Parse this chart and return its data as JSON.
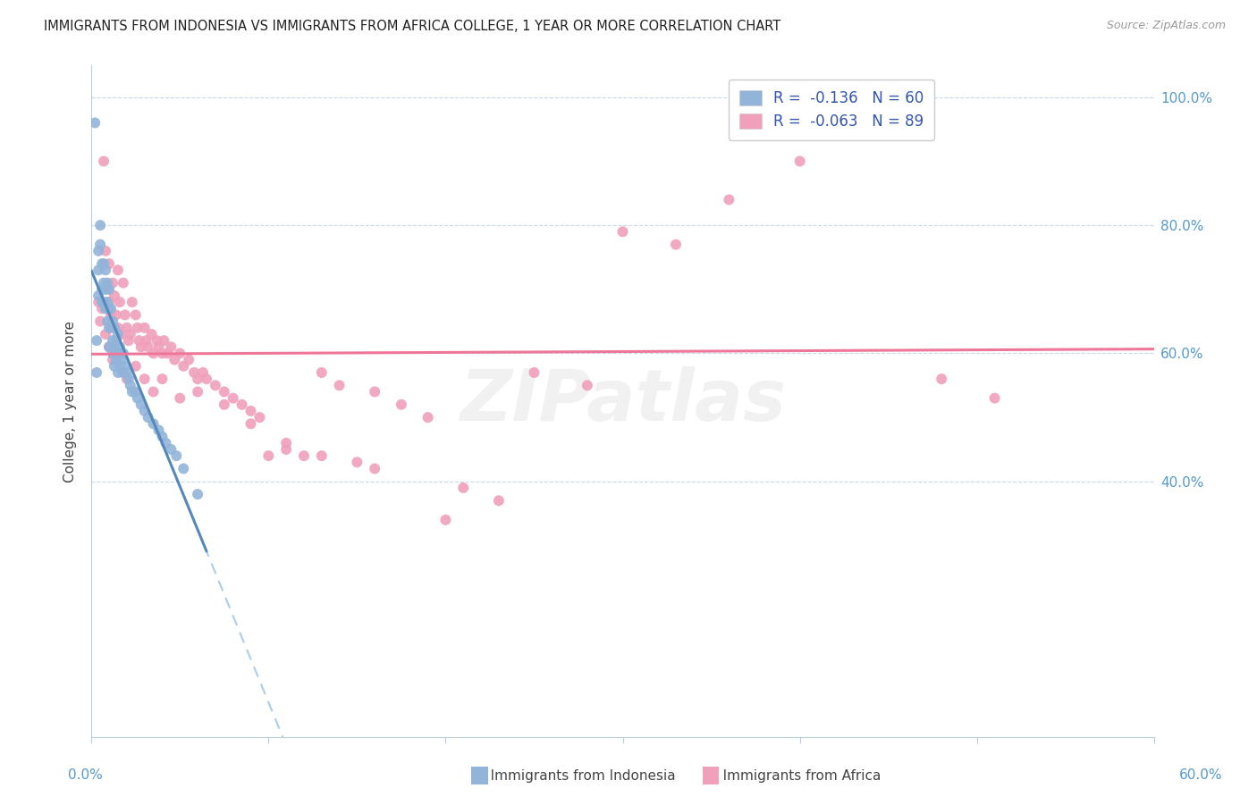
{
  "title": "IMMIGRANTS FROM INDONESIA VS IMMIGRANTS FROM AFRICA COLLEGE, 1 YEAR OR MORE CORRELATION CHART",
  "source": "Source: ZipAtlas.com",
  "ylabel": "College, 1 year or more",
  "r_indonesia": -0.136,
  "n_indonesia": 60,
  "r_africa": -0.063,
  "n_africa": 89,
  "color_indonesia": "#92B4D9",
  "color_africa": "#F0A0BB",
  "color_indonesia_line": "#5588BB",
  "color_africa_line": "#EE7799",
  "color_indonesia_dash": "#AACCEE",
  "legend_label_indonesia": "Immigrants from Indonesia",
  "legend_label_africa": "Immigrants from Africa",
  "xlim": [
    0.0,
    0.6
  ],
  "ylim": [
    0.0,
    1.05
  ],
  "indonesia_scatter_x": [
    0.002,
    0.003,
    0.003,
    0.004,
    0.004,
    0.004,
    0.005,
    0.005,
    0.006,
    0.006,
    0.006,
    0.007,
    0.007,
    0.007,
    0.008,
    0.008,
    0.008,
    0.009,
    0.009,
    0.009,
    0.01,
    0.01,
    0.01,
    0.01,
    0.011,
    0.011,
    0.012,
    0.012,
    0.012,
    0.013,
    0.013,
    0.013,
    0.014,
    0.014,
    0.015,
    0.015,
    0.015,
    0.016,
    0.016,
    0.017,
    0.018,
    0.018,
    0.019,
    0.02,
    0.021,
    0.022,
    0.023,
    0.025,
    0.026,
    0.028,
    0.03,
    0.032,
    0.035,
    0.038,
    0.04,
    0.042,
    0.045,
    0.048,
    0.052,
    0.06
  ],
  "indonesia_scatter_y": [
    0.96,
    0.62,
    0.57,
    0.76,
    0.73,
    0.69,
    0.8,
    0.77,
    0.74,
    0.7,
    0.68,
    0.74,
    0.71,
    0.68,
    0.73,
    0.7,
    0.67,
    0.71,
    0.68,
    0.65,
    0.7,
    0.67,
    0.64,
    0.61,
    0.67,
    0.64,
    0.65,
    0.62,
    0.6,
    0.64,
    0.61,
    0.58,
    0.62,
    0.59,
    0.63,
    0.6,
    0.57,
    0.61,
    0.58,
    0.59,
    0.6,
    0.57,
    0.58,
    0.57,
    0.56,
    0.55,
    0.54,
    0.54,
    0.53,
    0.52,
    0.51,
    0.5,
    0.49,
    0.48,
    0.47,
    0.46,
    0.45,
    0.44,
    0.42,
    0.38
  ],
  "africa_scatter_x": [
    0.004,
    0.005,
    0.006,
    0.007,
    0.008,
    0.009,
    0.01,
    0.01,
    0.011,
    0.012,
    0.013,
    0.014,
    0.015,
    0.015,
    0.016,
    0.017,
    0.018,
    0.019,
    0.02,
    0.021,
    0.022,
    0.023,
    0.025,
    0.026,
    0.027,
    0.028,
    0.03,
    0.031,
    0.032,
    0.034,
    0.035,
    0.037,
    0.038,
    0.04,
    0.041,
    0.043,
    0.045,
    0.047,
    0.05,
    0.052,
    0.055,
    0.058,
    0.06,
    0.063,
    0.065,
    0.07,
    0.075,
    0.08,
    0.085,
    0.09,
    0.095,
    0.1,
    0.11,
    0.12,
    0.13,
    0.14,
    0.15,
    0.16,
    0.175,
    0.19,
    0.21,
    0.23,
    0.25,
    0.28,
    0.3,
    0.33,
    0.36,
    0.4,
    0.44,
    0.48,
    0.51,
    0.008,
    0.01,
    0.012,
    0.015,
    0.018,
    0.02,
    0.025,
    0.03,
    0.035,
    0.04,
    0.05,
    0.06,
    0.075,
    0.09,
    0.11,
    0.13,
    0.16,
    0.2
  ],
  "africa_scatter_y": [
    0.68,
    0.65,
    0.67,
    0.9,
    0.76,
    0.7,
    0.74,
    0.68,
    0.66,
    0.71,
    0.69,
    0.66,
    0.64,
    0.73,
    0.68,
    0.63,
    0.71,
    0.66,
    0.64,
    0.62,
    0.63,
    0.68,
    0.66,
    0.64,
    0.62,
    0.61,
    0.64,
    0.62,
    0.61,
    0.63,
    0.6,
    0.62,
    0.61,
    0.6,
    0.62,
    0.6,
    0.61,
    0.59,
    0.6,
    0.58,
    0.59,
    0.57,
    0.56,
    0.57,
    0.56,
    0.55,
    0.54,
    0.53,
    0.52,
    0.51,
    0.5,
    0.44,
    0.45,
    0.44,
    0.57,
    0.55,
    0.43,
    0.54,
    0.52,
    0.5,
    0.39,
    0.37,
    0.57,
    0.55,
    0.79,
    0.77,
    0.84,
    0.9,
    0.97,
    0.56,
    0.53,
    0.63,
    0.61,
    0.59,
    0.6,
    0.57,
    0.56,
    0.58,
    0.56,
    0.54,
    0.56,
    0.53,
    0.54,
    0.52,
    0.49,
    0.46,
    0.44,
    0.42,
    0.34
  ]
}
